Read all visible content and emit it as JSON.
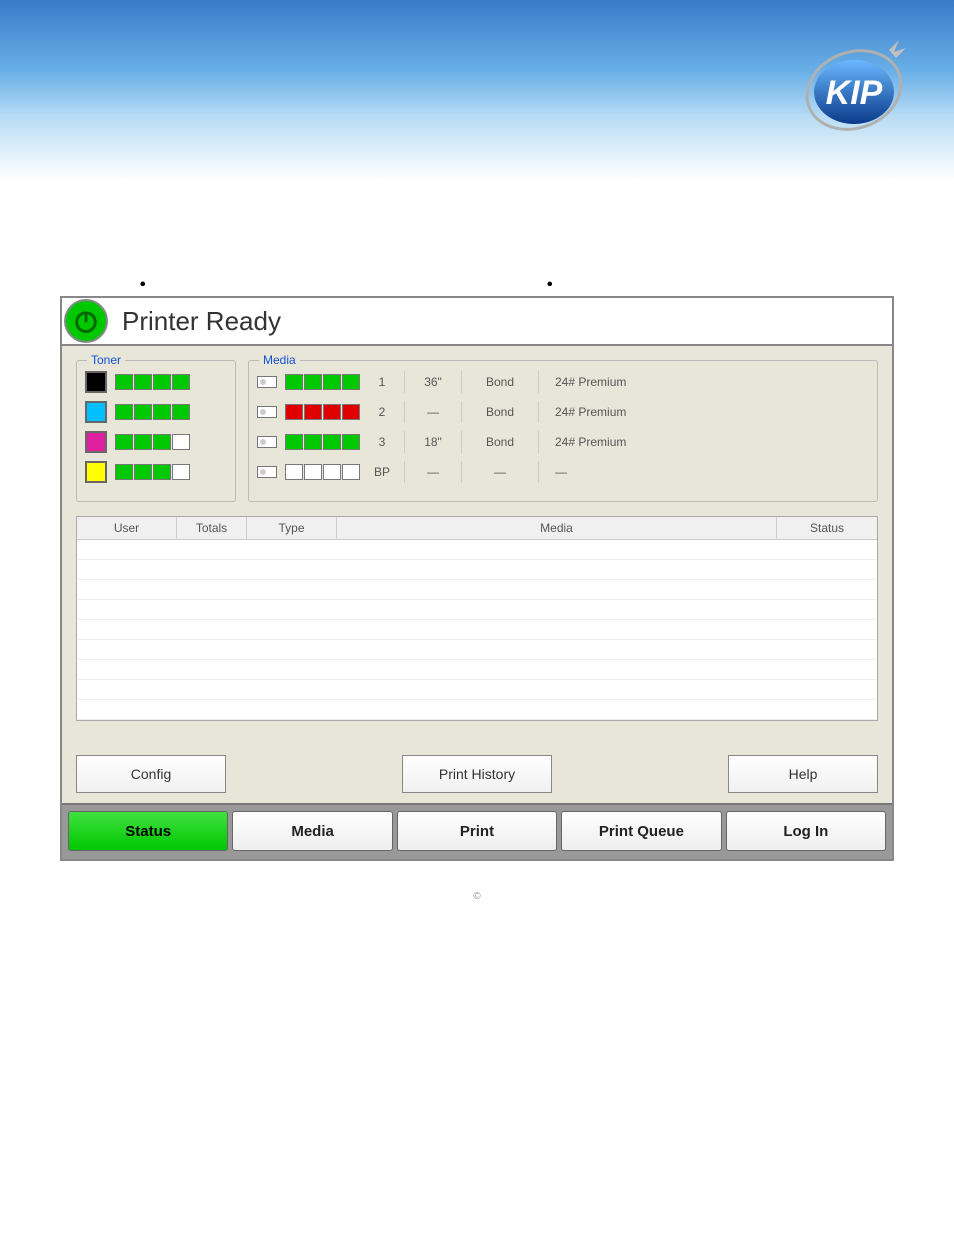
{
  "logo_text": "KIP",
  "bullets_left": [
    "",
    "",
    "",
    "",
    ""
  ],
  "bullets_right": [
    "",
    "",
    ""
  ],
  "printer": {
    "title": "Printer Ready",
    "toner_label": "Toner",
    "media_label": "Media",
    "toners": [
      {
        "color": "#000000",
        "segs": [
          "seg-full",
          "seg-full",
          "seg-full",
          "seg-full"
        ]
      },
      {
        "color": "#00bfff",
        "segs": [
          "seg-full",
          "seg-full",
          "seg-full",
          "seg-full"
        ]
      },
      {
        "color": "#e020a0",
        "segs": [
          "seg-full",
          "seg-full",
          "seg-full",
          "seg-empty"
        ]
      },
      {
        "color": "#ffff00",
        "segs": [
          "seg-full",
          "seg-full",
          "seg-full",
          "seg-empty"
        ]
      }
    ],
    "media": [
      {
        "segs": [
          "seg-full",
          "seg-full",
          "seg-full",
          "seg-full"
        ],
        "slot": "1",
        "size": "36\"",
        "type": "Bond",
        "desc": "24# Premium"
      },
      {
        "segs": [
          "seg-red",
          "seg-red",
          "seg-red",
          "seg-red"
        ],
        "slot": "2",
        "size": "—",
        "type": "Bond",
        "desc": "24# Premium"
      },
      {
        "segs": [
          "seg-full",
          "seg-full",
          "seg-full",
          "seg-full"
        ],
        "slot": "3",
        "size": "18\"",
        "type": "Bond",
        "desc": "24# Premium"
      },
      {
        "segs": [
          "seg-empty",
          "seg-empty",
          "seg-empty",
          "seg-empty"
        ],
        "slot": "BP",
        "size": "—",
        "type": "—",
        "desc": "—"
      }
    ],
    "table_headers": {
      "user": "User",
      "totals": "Totals",
      "type": "Type",
      "media": "Media",
      "status": "Status"
    },
    "actions": {
      "config": "Config",
      "history": "Print History",
      "help": "Help"
    },
    "nav": {
      "status": "Status",
      "media": "Media",
      "print": "Print",
      "queue": "Print Queue",
      "login": "Log In"
    }
  },
  "footer_copyright": "©",
  "colors": {
    "green": "#00c800",
    "red": "#e00000",
    "panel_bg": "#e8e6d9",
    "header_blue": "#3a7bc8"
  }
}
